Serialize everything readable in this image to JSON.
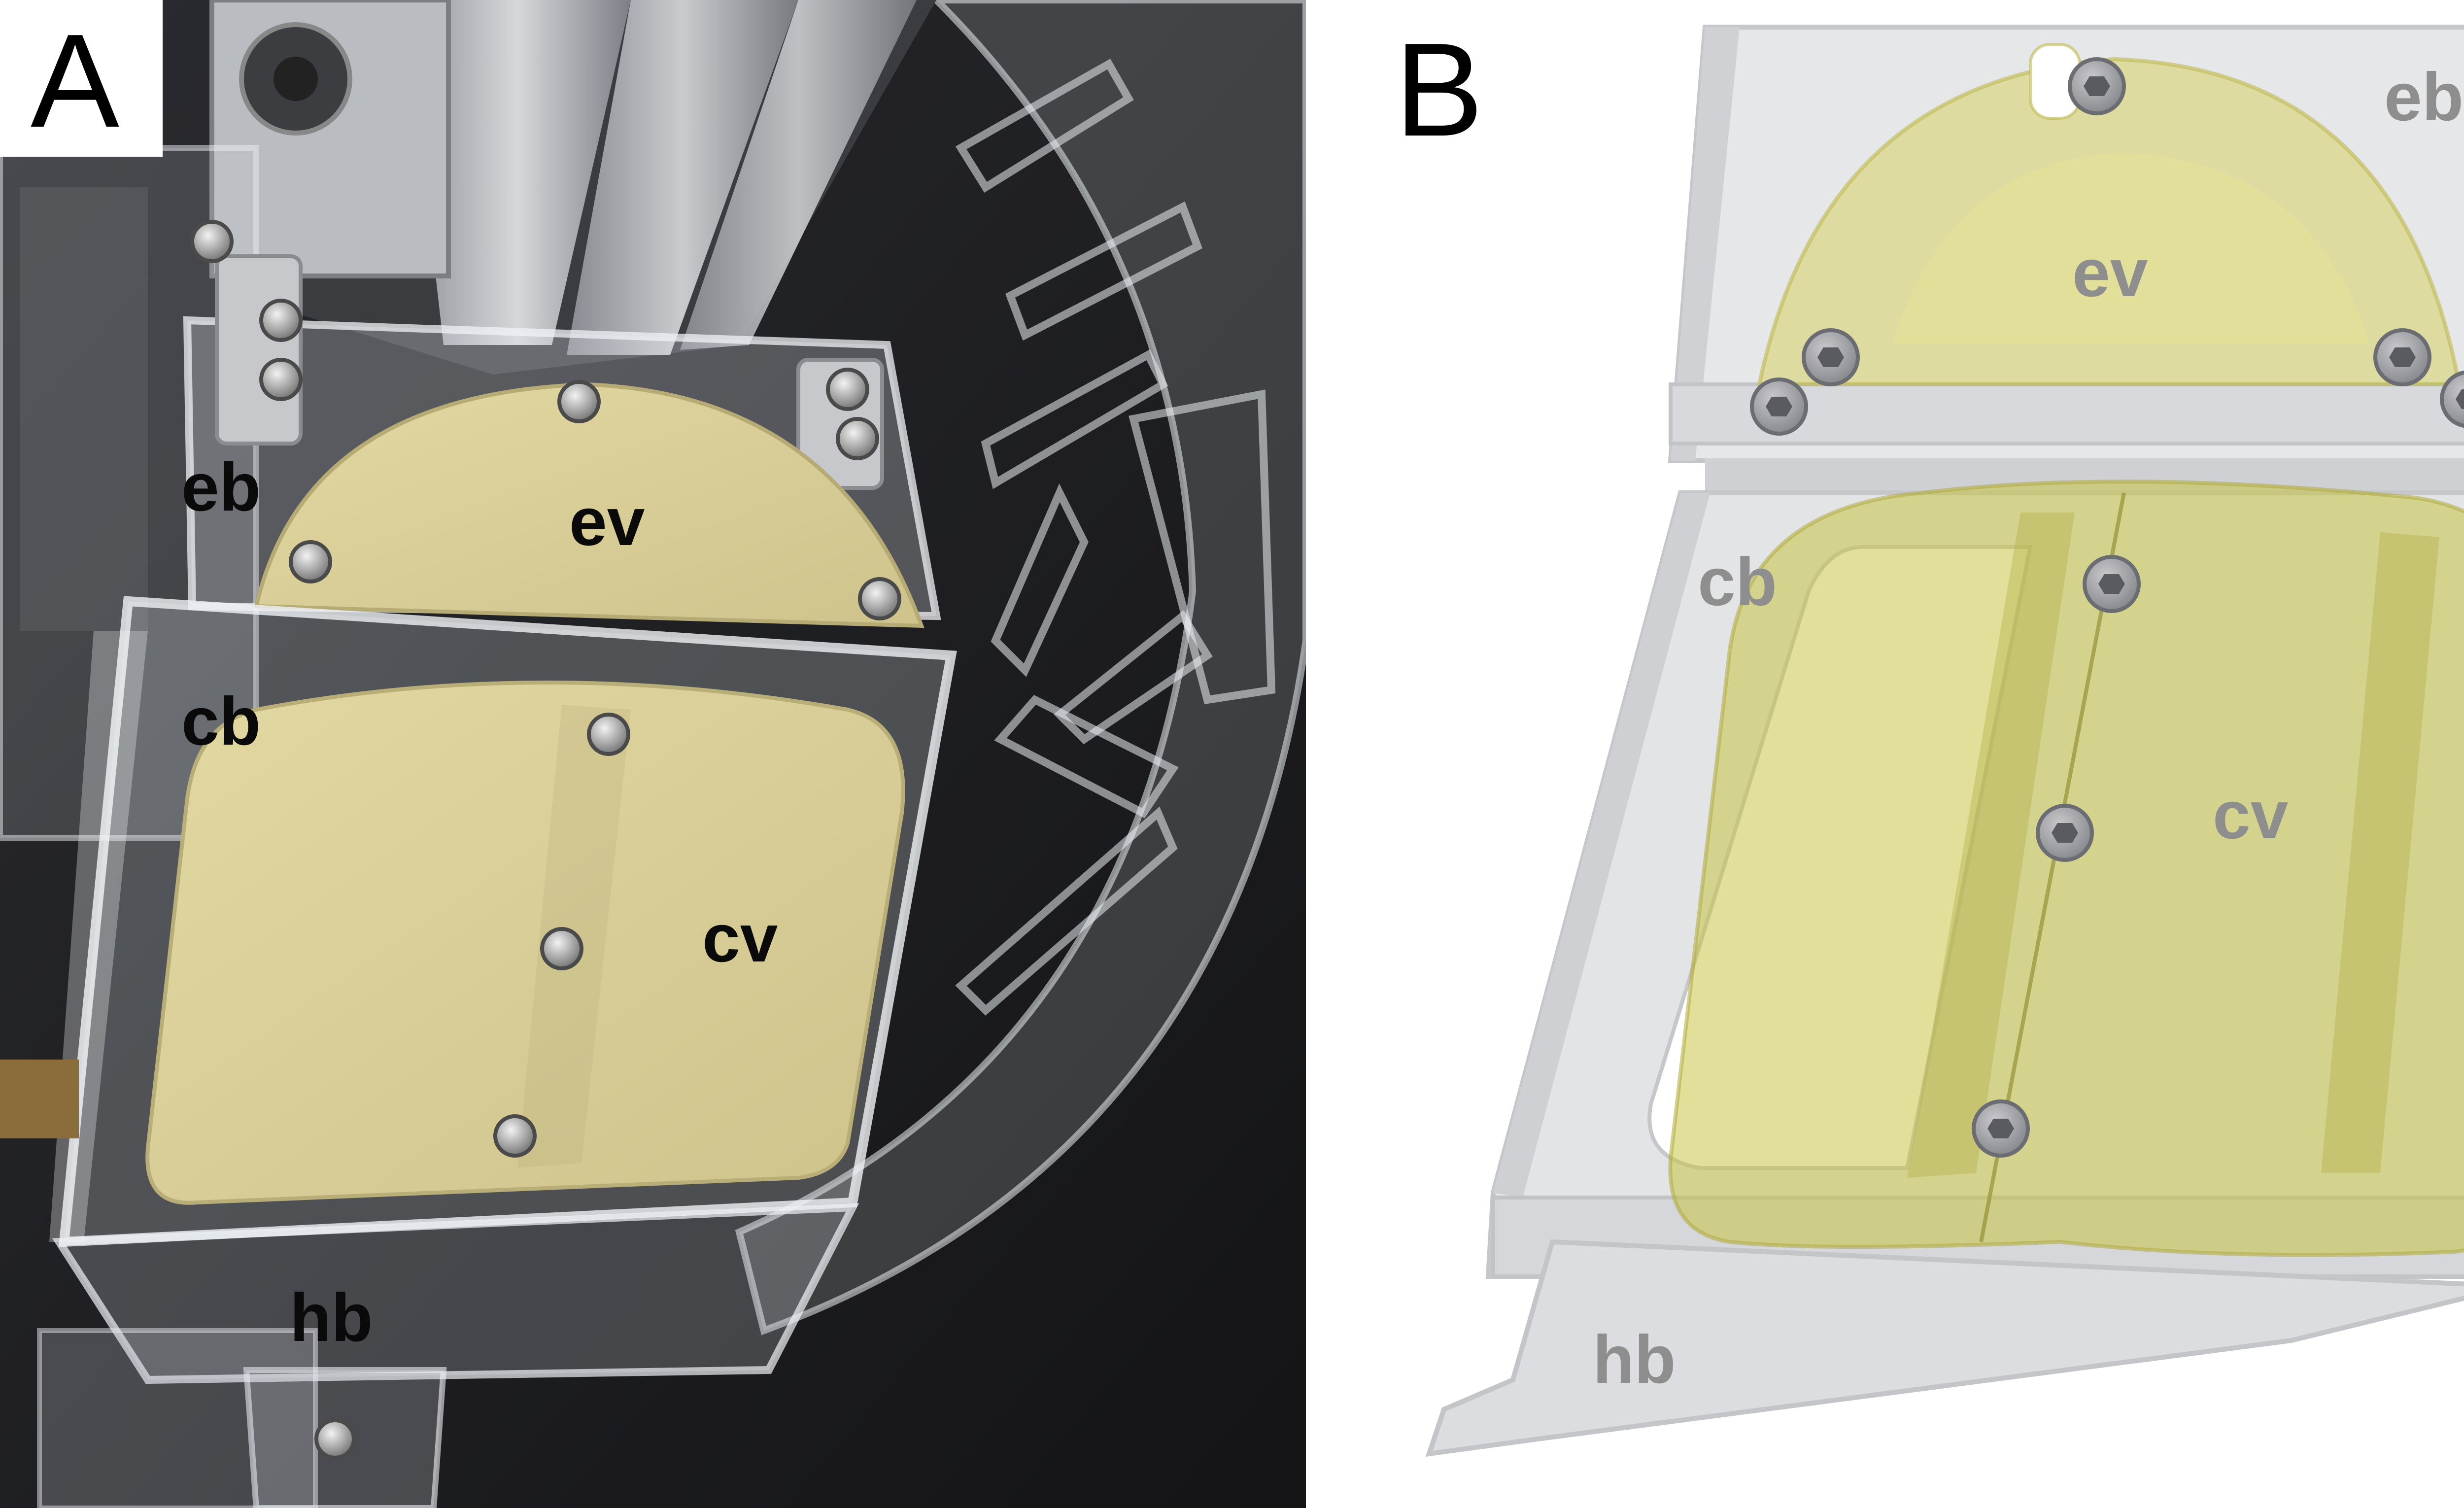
{
  "panel_a": {
    "letter": "A",
    "labels": {
      "eb": "eb",
      "ev": "ev",
      "cb": "cb",
      "cv": "cv",
      "hb": "hb"
    }
  },
  "panel_b": {
    "letter": "B",
    "labels": {
      "eb": "eb",
      "ev": "ev",
      "cb": "cb",
      "cv": "cv",
      "hb": "hb"
    }
  },
  "colors": {
    "photo_background": "#1f1f22",
    "valve_yellow": "#d9cf8a",
    "valve_yellow_translucent": "#c9c24d",
    "acrylic_gray": "#cfd0d2",
    "label_dark": "#0a0a0a",
    "label_gray": "#8e8e8e"
  }
}
